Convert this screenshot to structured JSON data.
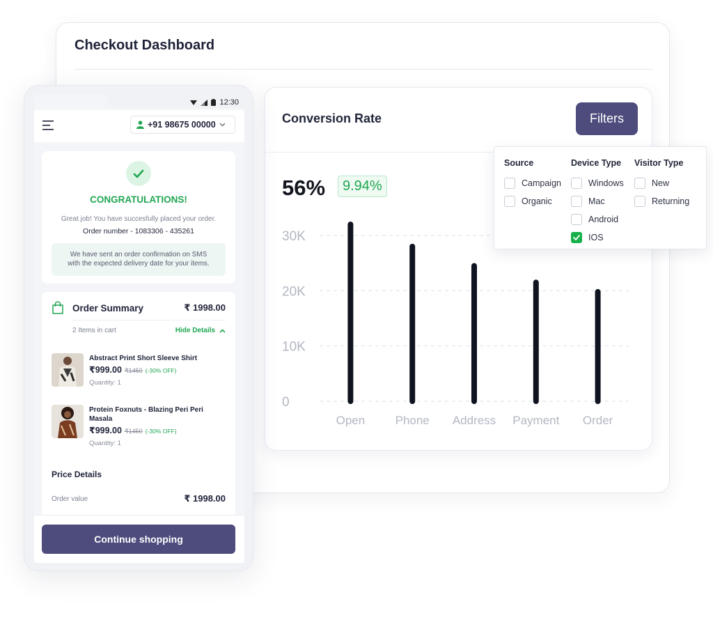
{
  "dashboard": {
    "title": "Checkout Dashboard"
  },
  "conversion": {
    "title": "Conversion Rate",
    "filters_label": "Filters",
    "rate": "56%",
    "change": "9.94%"
  },
  "filter_panel": {
    "columns": [
      {
        "title": "Source",
        "options": [
          {
            "label": "Campaign",
            "checked": false
          },
          {
            "label": "Organic",
            "checked": false
          }
        ]
      },
      {
        "title": "Device Type",
        "options": [
          {
            "label": "Windows",
            "checked": false
          },
          {
            "label": "Mac",
            "checked": false
          },
          {
            "label": "Android",
            "checked": false
          },
          {
            "label": "IOS",
            "checked": true
          }
        ]
      },
      {
        "title": "Visitor Type",
        "options": [
          {
            "label": "New",
            "checked": false
          },
          {
            "label": "Returning",
            "checked": false
          }
        ]
      }
    ]
  },
  "chart_data": {
    "type": "bar",
    "categories": [
      "Open",
      "Phone",
      "Address",
      "Payment",
      "Order"
    ],
    "values": [
      32000,
      28000,
      24500,
      21500,
      19800
    ],
    "ylim": [
      0,
      30000
    ],
    "yticks": [
      "0",
      "10K",
      "20K",
      "30K"
    ],
    "ytick_values": [
      0,
      10000,
      20000,
      30000
    ],
    "grid": true,
    "colors": {
      "bar": "#0f1420",
      "grid": "#dcdfe6",
      "axis_text": "#b3b7c2"
    }
  },
  "phone": {
    "status_time": "12:30",
    "phone_number": "+91 98675 00000",
    "congrats_title": "CONGRATULATIONS!",
    "congrats_message": "Great job! You have succesfully placed your order.",
    "order_number": "Order number - 1083306 - 435261",
    "sms_note_line1": "We have sent an order confirmation on SMS",
    "sms_note_line2": "with the expected delivery date for your items.",
    "summary_title": "Order Summary",
    "summary_total": "₹ 1998.00",
    "items_count": "2 Items in cart",
    "hide_details": "Hide Details",
    "items": [
      {
        "name": "Abstract Print Short Sleeve Shirt",
        "price": "₹999.00",
        "original": "₹1450",
        "discount": "(-30% OFF)",
        "quantity": "Quantity: 1"
      },
      {
        "name": "Protein Foxnuts - Blazing Peri Peri Masala",
        "price": "₹999.00",
        "original": "₹1450",
        "discount": "(-30% OFF)",
        "quantity": "Quantity: 1"
      }
    ],
    "price_details_title": "Price Details",
    "order_value_label": "Order value",
    "order_value": "₹ 1998.00",
    "continue_label": "Continue shopping"
  },
  "colors": {
    "accent": "#4d4c7d",
    "success": "#1fa651"
  }
}
